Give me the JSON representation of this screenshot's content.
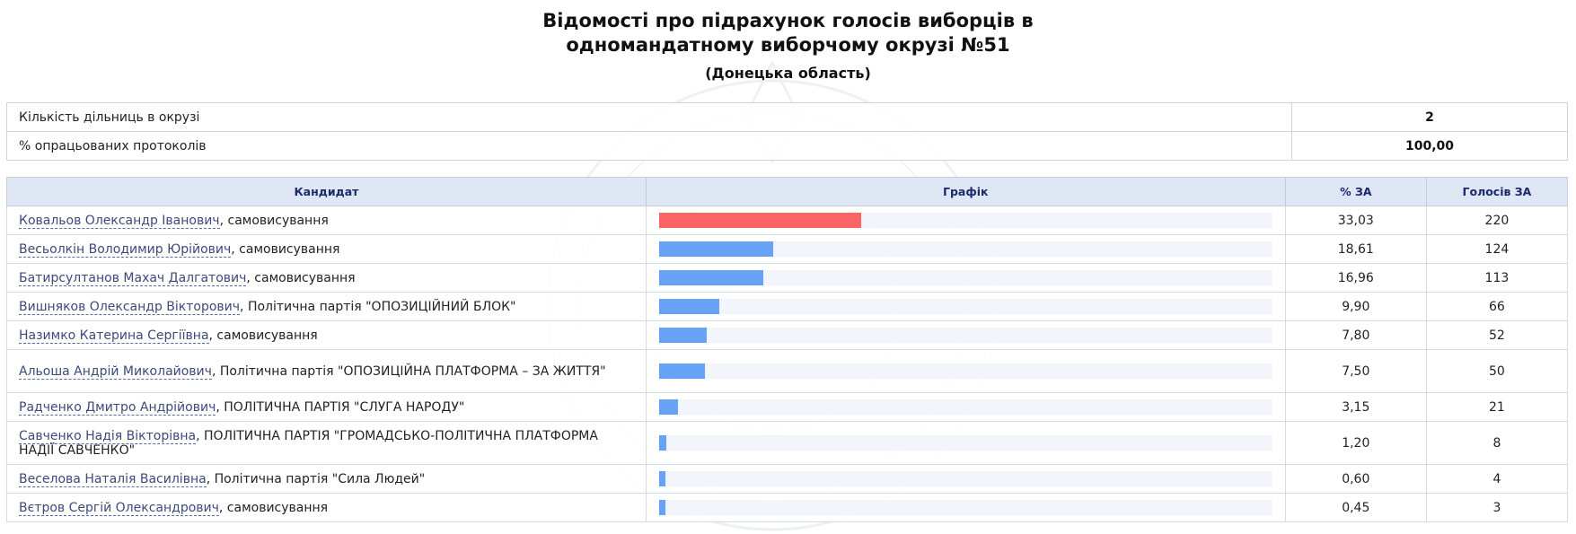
{
  "page": {
    "title": "Відомості про підрахунок голосів виборців в одномандатному виборчому окрузі №51",
    "region": "(Донецька область)"
  },
  "summary": [
    {
      "label": "Кількість дільниць в окрузі",
      "value": "2"
    },
    {
      "label": "% опрацьованих протоколів",
      "value": "100,00"
    }
  ],
  "table": {
    "headers": {
      "candidate": "Кандидат",
      "graph": "Графік",
      "percent": "% ЗА",
      "votes": "Голосів ЗА"
    },
    "scale_max_percent": 100,
    "rows": [
      {
        "name": "Ковальов Олександр Іванович",
        "party": ", самовисування",
        "percent": "33,03",
        "pct": 33.03,
        "votes": "220",
        "leader": true
      },
      {
        "name": "Весьолкін Володимир Юрійович",
        "party": ", самовисування",
        "percent": "18,61",
        "pct": 18.61,
        "votes": "124"
      },
      {
        "name": "Батирсултанов Махач Далгатович",
        "party": ", самовисування",
        "percent": "16,96",
        "pct": 16.96,
        "votes": "113"
      },
      {
        "name": "Вишняков Олександр Вікторович",
        "party": ", Політична партія \"ОПОЗИЦІЙНИЙ БЛОК\"",
        "percent": "9,90",
        "pct": 9.9,
        "votes": "66"
      },
      {
        "name": "Назимко Катерина Сергіївна",
        "party": ", самовисування",
        "percent": "7,80",
        "pct": 7.8,
        "votes": "52"
      },
      {
        "name": "Альоша Андрій Миколайович",
        "party": ", Політична партія \"ОПОЗИЦІЙНА ПЛАТФОРМА – ЗА ЖИТТЯ\"",
        "percent": "7,50",
        "pct": 7.5,
        "votes": "50",
        "tall": true
      },
      {
        "name": "Радченко Дмитро Андрійович",
        "party": ", ПОЛІТИЧНА ПАРТІЯ \"СЛУГА НАРОДУ\"",
        "percent": "3,15",
        "pct": 3.15,
        "votes": "21"
      },
      {
        "name": "Савченко Надія Вікторівна",
        "party": ", ПОЛІТИЧНА ПАРТІЯ \"ГРОМАДСЬКО-ПОЛІТИЧНА ПЛАТФОРМА НАДІЇ САВЧЕНКО\"",
        "percent": "1,20",
        "pct": 1.2,
        "votes": "8",
        "tall": true
      },
      {
        "name": "Веселова Наталія Василівна",
        "party": ", Політична партія \"Сила Людей\"",
        "percent": "0,60",
        "pct": 0.6,
        "votes": "4"
      },
      {
        "name": "Вєтров Сергій Олександрович",
        "party": ", самовисування",
        "percent": "0,45",
        "pct": 0.45,
        "votes": "3"
      }
    ]
  },
  "colors": {
    "leader_bar": "#fa6464",
    "bar": "#66a3f7",
    "track": "#f2f5fc",
    "header_bg": "#dfe6f4"
  }
}
